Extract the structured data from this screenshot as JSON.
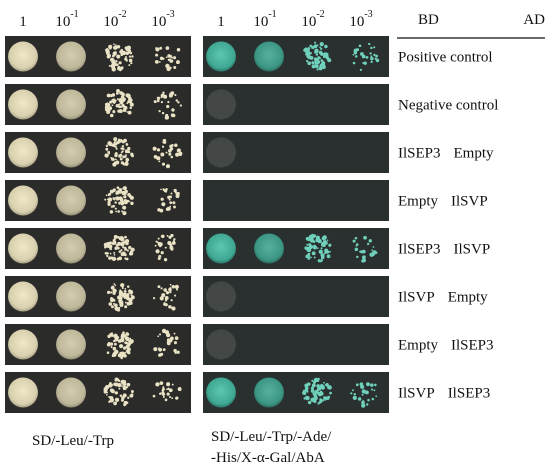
{
  "panels": [
    {
      "dilutions": [
        {
          "base": "1"
        },
        {
          "base": "10",
          "exponent": "-1"
        },
        {
          "base": "10",
          "exponent": "-2"
        },
        {
          "base": "10",
          "exponent": "-3"
        }
      ],
      "caption": [
        "SD/-Leu/-Trp"
      ]
    },
    {
      "dilutions": [
        {
          "base": "1"
        },
        {
          "base": "10",
          "exponent": "-1"
        },
        {
          "base": "10",
          "exponent": "-2"
        },
        {
          "base": "10",
          "exponent": "-3"
        }
      ],
      "caption": [
        "SD/-Leu/-Trp/-Ade/",
        "-His/X-α-Gal/AbA"
      ]
    }
  ],
  "header": {
    "bd": "BD",
    "ad": "AD"
  },
  "rows": [
    {
      "label": "Positive control"
    },
    {
      "label": "Negative control"
    },
    {
      "bd": "IlSEP3",
      "ad": "Empty"
    },
    {
      "bd": "Empty",
      "ad": "IlSVP"
    },
    {
      "bd": "IlSEP3",
      "ad": "IlSVP"
    },
    {
      "bd": "IlSVP",
      "ad": "Empty"
    },
    {
      "bd": "Empty",
      "ad": "IlSEP3"
    },
    {
      "bd": "IlSVP",
      "ad": "IlSEP3"
    }
  ]
}
